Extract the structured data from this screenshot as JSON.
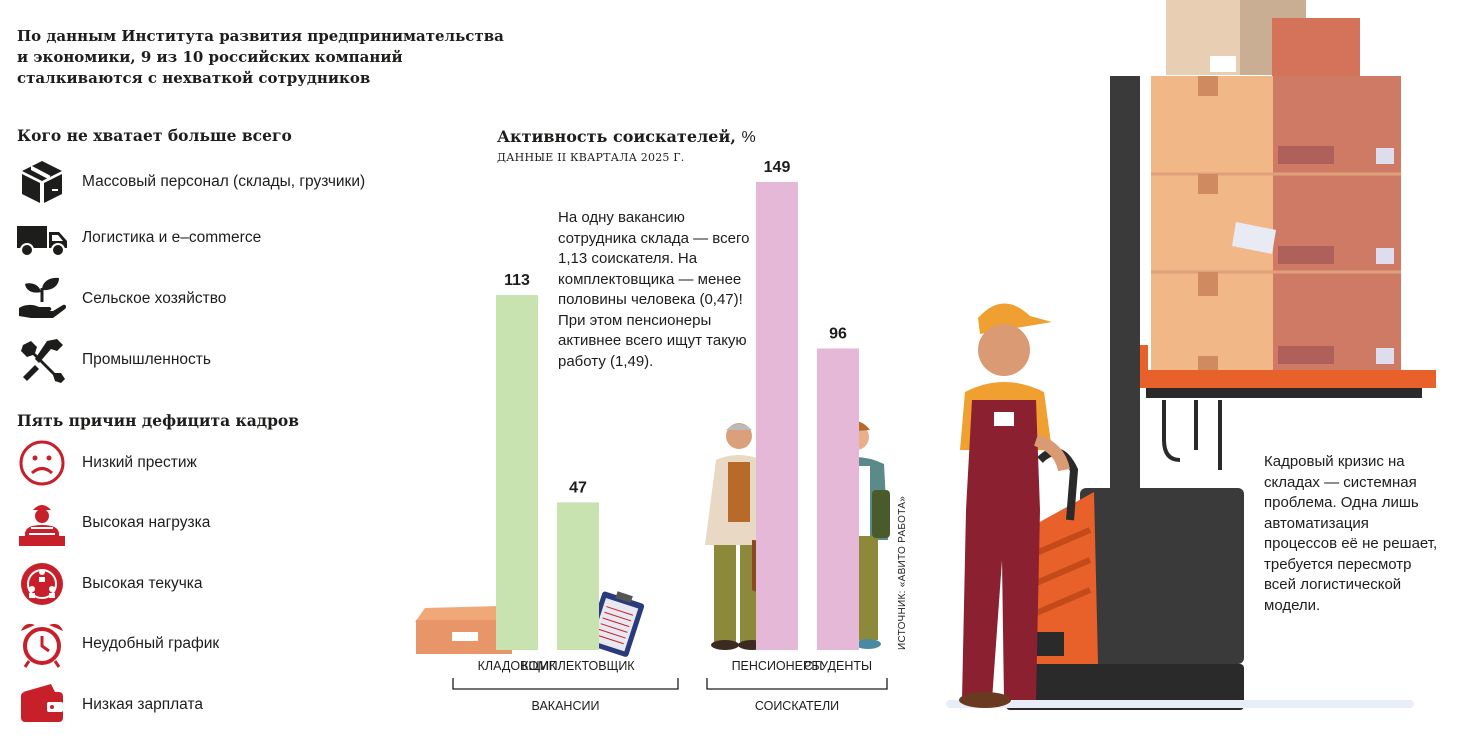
{
  "intro": {
    "line1": "По данным Института развития предпринимательства",
    "line2": "и экономики, 9 из 10 российских компаний",
    "line3": "сталкиваются с нехваткой сотрудников"
  },
  "shortage": {
    "title": "Кого не хватает больше всего",
    "items": [
      {
        "label": "Массовый персонал (склады, грузчики)",
        "icon": "box-icon"
      },
      {
        "label": "Логистика и e–commerce",
        "icon": "truck-icon"
      },
      {
        "label": "Сельское хозяйство",
        "icon": "hand-sprout-icon"
      },
      {
        "label": "Промышленность",
        "icon": "wrench-icon"
      }
    ]
  },
  "reasons": {
    "title": "Пять причин дефицита кадров",
    "items": [
      {
        "label": "Низкий престиж",
        "icon": "sad-face-icon"
      },
      {
        "label": "Высокая нагрузка",
        "icon": "worker-overload-icon"
      },
      {
        "label": "Высокая текучка",
        "icon": "people-rotation-icon"
      },
      {
        "label": "Неудобный график",
        "icon": "alarm-clock-icon"
      },
      {
        "label": "Низкая зарплата",
        "icon": "wallet-icon"
      }
    ]
  },
  "chart_data": {
    "type": "bar",
    "title": "Активность соискателей,",
    "unit": "%",
    "subtitle": "ДАННЫЕ II КВАРТАЛА 2025 Г.",
    "categories": [
      "КЛАДОВЩИК",
      "КОМПЛЕКТОВЩИК",
      "ПЕНСИОНЕРЫ",
      "СТУДЕНТЫ"
    ],
    "values": [
      113,
      47,
      149,
      96
    ],
    "colors": [
      "#c8e3b0",
      "#c8e3b0",
      "#e6b8d8",
      "#e6b8d8"
    ],
    "groups": [
      {
        "label": "ВАКАНСИИ",
        "categories": [
          "КЛАДОВЩИК",
          "КОМПЛЕКТОВЩИК"
        ]
      },
      {
        "label": "СОИСКАТЕЛИ",
        "categories": [
          "ПЕНСИОНЕРЫ",
          "СТУДЕНТЫ"
        ]
      }
    ],
    "ylim": [
      0,
      149
    ]
  },
  "chart_note": "На одну вакансию сотрудника склада — всего 1,13 соискателя. На комплектовщика — менее половины человека (0,47)! При этом пенсионеры активнее всего ищут такую работу (1,49).",
  "source": "ИСТОЧНИК: «АВИТО РАБОТА»",
  "right_note": "Кадровый кризис на складах — системная проблема. Одна лишь автоматизация процессов её не решает, требуется пересмотр всей логистической модели.",
  "colors": {
    "accent_red": "#c8202b",
    "bar_green": "#c8e3b0",
    "bar_pink": "#e6b8d8"
  }
}
